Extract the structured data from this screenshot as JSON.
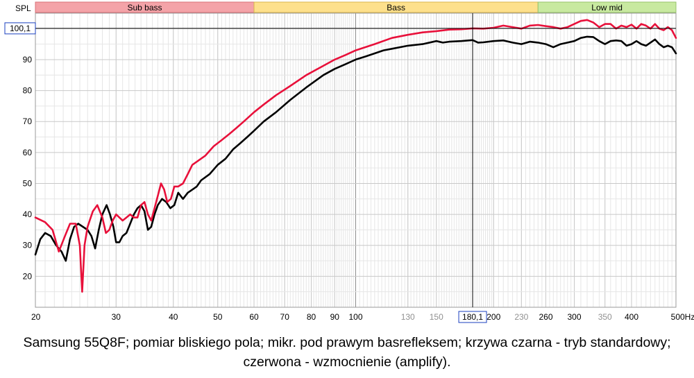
{
  "chart_data": {
    "type": "line",
    "ylabel": "SPL",
    "xunit": "Hz",
    "xscale": "log",
    "xlim": [
      20,
      500
    ],
    "ylim": [
      10,
      105
    ],
    "grid": true,
    "yticks": [
      20,
      30,
      40,
      50,
      60,
      70,
      80,
      90
    ],
    "ytick_labels": [
      "20",
      "30",
      "40",
      "50",
      "60",
      "70",
      "80",
      "90"
    ],
    "xticks": [
      {
        "v": 20,
        "label": "20",
        "color": "dark"
      },
      {
        "v": 30,
        "label": "30",
        "color": "dark"
      },
      {
        "v": 40,
        "label": "40",
        "color": "dark"
      },
      {
        "v": 50,
        "label": "50",
        "color": "dark"
      },
      {
        "v": 60,
        "label": "60",
        "color": "dark"
      },
      {
        "v": 70,
        "label": "70",
        "color": "dark"
      },
      {
        "v": 80,
        "label": "80",
        "color": "dark"
      },
      {
        "v": 90,
        "label": "90",
        "color": "dark"
      },
      {
        "v": 100,
        "label": "100",
        "color": "dark"
      },
      {
        "v": 130,
        "label": "130",
        "color": "grey"
      },
      {
        "v": 150,
        "label": "150",
        "color": "grey"
      },
      {
        "v": 200,
        "label": "200",
        "color": "dark"
      },
      {
        "v": 230,
        "label": "230",
        "color": "grey"
      },
      {
        "v": 260,
        "label": "260",
        "color": "dark"
      },
      {
        "v": 300,
        "label": "300",
        "color": "dark"
      },
      {
        "v": 350,
        "label": "350",
        "color": "grey"
      },
      {
        "v": 400,
        "label": "400",
        "color": "dark"
      },
      {
        "v": 500,
        "label": "500Hz",
        "color": "dark"
      }
    ],
    "bands": [
      {
        "label": "Sub bass",
        "from": 20,
        "to": 60,
        "color": "#f4a3a8",
        "border": "#d87078"
      },
      {
        "label": "Bass",
        "from": 60,
        "to": 250,
        "color": "#fde08c",
        "border": "#d8b44e"
      },
      {
        "label": "Low mid",
        "from": 250,
        "to": 500,
        "color": "#c8e9a0",
        "border": "#96c26a"
      }
    ],
    "cursor": {
      "x": 180,
      "y": 100.1,
      "x_label": "180,1",
      "y_label": "100,1"
    },
    "series": [
      {
        "color": "#000000",
        "points": [
          [
            20,
            27
          ],
          [
            20.5,
            32
          ],
          [
            21,
            34
          ],
          [
            21.6,
            33
          ],
          [
            22.2,
            30
          ],
          [
            22.8,
            28
          ],
          [
            23.3,
            25
          ],
          [
            23.8,
            32
          ],
          [
            24.3,
            36
          ],
          [
            24.8,
            37
          ],
          [
            25.4,
            36
          ],
          [
            26,
            35
          ],
          [
            26.5,
            33
          ],
          [
            27,
            29
          ],
          [
            27.5,
            35
          ],
          [
            28,
            40
          ],
          [
            28.6,
            43
          ],
          [
            29.1,
            40
          ],
          [
            29.6,
            36
          ],
          [
            30,
            31
          ],
          [
            30.5,
            31
          ],
          [
            31,
            33
          ],
          [
            31.6,
            34
          ],
          [
            32.2,
            37
          ],
          [
            32.8,
            40
          ],
          [
            33.4,
            42
          ],
          [
            34,
            43
          ],
          [
            34.6,
            41
          ],
          [
            35.2,
            35
          ],
          [
            35.8,
            36
          ],
          [
            36.4,
            40
          ],
          [
            37,
            43
          ],
          [
            37.8,
            45
          ],
          [
            38.6,
            44
          ],
          [
            39.4,
            42
          ],
          [
            40.2,
            43
          ],
          [
            41,
            47
          ],
          [
            42,
            45
          ],
          [
            43,
            47
          ],
          [
            44,
            48
          ],
          [
            45,
            49
          ],
          [
            46,
            51
          ],
          [
            48,
            53
          ],
          [
            50,
            56
          ],
          [
            52,
            58
          ],
          [
            54,
            61
          ],
          [
            56,
            63
          ],
          [
            58,
            65
          ],
          [
            60,
            67
          ],
          [
            63,
            70
          ],
          [
            67,
            73
          ],
          [
            72,
            77
          ],
          [
            78,
            81
          ],
          [
            85,
            85
          ],
          [
            90,
            87
          ],
          [
            95,
            88.5
          ],
          [
            100,
            90
          ],
          [
            105,
            91
          ],
          [
            110,
            92
          ],
          [
            115,
            93
          ],
          [
            120,
            93.5
          ],
          [
            130,
            94.5
          ],
          [
            140,
            95
          ],
          [
            150,
            96
          ],
          [
            155,
            95.5
          ],
          [
            160,
            95.8
          ],
          [
            170,
            96
          ],
          [
            180,
            96.3
          ],
          [
            185,
            95.5
          ],
          [
            190,
            95.6
          ],
          [
            200,
            96
          ],
          [
            210,
            96.2
          ],
          [
            220,
            95.5
          ],
          [
            230,
            95
          ],
          [
            240,
            95.8
          ],
          [
            250,
            95.5
          ],
          [
            260,
            95
          ],
          [
            270,
            94
          ],
          [
            280,
            95
          ],
          [
            290,
            95.5
          ],
          [
            300,
            96
          ],
          [
            310,
            97
          ],
          [
            320,
            97.4
          ],
          [
            330,
            97.3
          ],
          [
            340,
            96
          ],
          [
            350,
            95
          ],
          [
            360,
            96
          ],
          [
            370,
            96.2
          ],
          [
            380,
            96
          ],
          [
            390,
            94.5
          ],
          [
            400,
            95
          ],
          [
            410,
            96
          ],
          [
            420,
            95
          ],
          [
            430,
            94.5
          ],
          [
            440,
            95.5
          ],
          [
            450,
            96.5
          ],
          [
            460,
            95
          ],
          [
            470,
            94
          ],
          [
            480,
            94.5
          ],
          [
            490,
            94
          ],
          [
            500,
            92
          ]
        ]
      },
      {
        "color": "#e8103a",
        "points": [
          [
            20,
            39
          ],
          [
            21,
            37.5
          ],
          [
            21.8,
            35
          ],
          [
            22.5,
            28
          ],
          [
            23.2,
            33
          ],
          [
            23.8,
            37
          ],
          [
            24.5,
            37
          ],
          [
            25,
            30
          ],
          [
            25.3,
            15
          ],
          [
            25.6,
            30
          ],
          [
            26,
            36
          ],
          [
            26.7,
            41
          ],
          [
            27.3,
            43
          ],
          [
            28,
            39
          ],
          [
            28.5,
            34
          ],
          [
            29,
            35
          ],
          [
            29.5,
            38
          ],
          [
            30,
            40
          ],
          [
            30.5,
            39
          ],
          [
            31,
            38
          ],
          [
            31.6,
            39
          ],
          [
            32.2,
            40
          ],
          [
            32.8,
            39
          ],
          [
            33.4,
            39
          ],
          [
            34,
            43
          ],
          [
            34.6,
            44
          ],
          [
            35.2,
            40
          ],
          [
            35.8,
            38
          ],
          [
            36.4,
            42
          ],
          [
            37,
            46
          ],
          [
            37.6,
            50
          ],
          [
            38.2,
            48
          ],
          [
            38.8,
            44
          ],
          [
            39.5,
            45
          ],
          [
            40.2,
            49
          ],
          [
            41,
            49
          ],
          [
            42,
            50
          ],
          [
            43,
            53
          ],
          [
            44,
            56
          ],
          [
            45,
            57
          ],
          [
            47,
            59
          ],
          [
            49,
            62
          ],
          [
            51,
            64
          ],
          [
            53,
            66
          ],
          [
            55,
            68
          ],
          [
            57,
            70
          ],
          [
            60,
            73
          ],
          [
            63,
            75.5
          ],
          [
            67,
            78.5
          ],
          [
            72,
            81.5
          ],
          [
            78,
            85
          ],
          [
            85,
            88
          ],
          [
            90,
            90
          ],
          [
            95,
            91.5
          ],
          [
            100,
            93
          ],
          [
            110,
            95
          ],
          [
            120,
            97
          ],
          [
            130,
            98
          ],
          [
            140,
            98.8
          ],
          [
            150,
            99.2
          ],
          [
            160,
            99.7
          ],
          [
            170,
            99.8
          ],
          [
            180,
            100.1
          ],
          [
            190,
            100
          ],
          [
            200,
            100.3
          ],
          [
            210,
            101
          ],
          [
            220,
            100.5
          ],
          [
            230,
            100
          ],
          [
            240,
            101
          ],
          [
            250,
            101.2
          ],
          [
            260,
            100.8
          ],
          [
            270,
            100.5
          ],
          [
            280,
            100
          ],
          [
            290,
            100.5
          ],
          [
            300,
            101.5
          ],
          [
            310,
            102.5
          ],
          [
            320,
            102.8
          ],
          [
            330,
            102
          ],
          [
            340,
            100.5
          ],
          [
            350,
            101.5
          ],
          [
            360,
            101.5
          ],
          [
            370,
            100
          ],
          [
            380,
            101
          ],
          [
            390,
            100.5
          ],
          [
            400,
            101.3
          ],
          [
            410,
            100
          ],
          [
            420,
            101.5
          ],
          [
            430,
            101
          ],
          [
            440,
            100
          ],
          [
            450,
            101.5
          ],
          [
            460,
            100
          ],
          [
            470,
            99.5
          ],
          [
            480,
            100.5
          ],
          [
            490,
            99.5
          ],
          [
            500,
            97
          ]
        ]
      }
    ]
  },
  "caption": "Samsung 55Q8F; pomiar bliskiego pola; mikr. pod prawym basrefleksem; krzywa czarna - tryb standardowy; czerwona - wzmocnienie (amplify)."
}
